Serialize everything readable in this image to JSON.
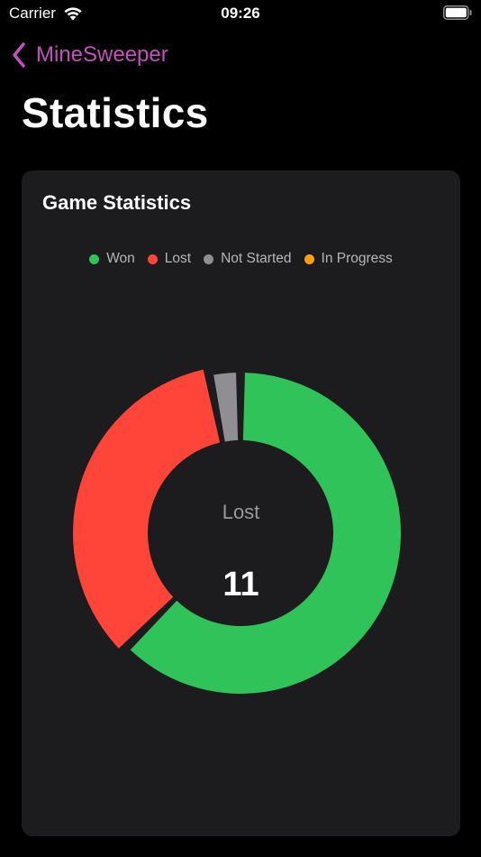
{
  "status_bar": {
    "carrier": "Carrier",
    "time": "09:26"
  },
  "nav": {
    "back_label": "MineSweeper"
  },
  "page": {
    "title": "Statistics"
  },
  "card": {
    "title": "Game Statistics",
    "legend": [
      {
        "label": "Won",
        "color": "#30c35a"
      },
      {
        "label": "Lost",
        "color": "#ff453a"
      },
      {
        "label": "Not Started",
        "color": "#8e8e93"
      },
      {
        "label": "In Progress",
        "color": "#ff9f0a"
      }
    ],
    "center": {
      "label": "Lost",
      "value": "11"
    }
  },
  "chart_data": {
    "type": "pie",
    "style": "donut",
    "categories": [
      "Won",
      "Lost",
      "Not Started",
      "In Progress"
    ],
    "values": [
      20,
      11,
      1,
      0
    ],
    "colors": [
      "#30c35a",
      "#ff453a",
      "#8e8e93",
      "#ff9f0a"
    ],
    "highlighted": "Lost",
    "legend_position": "top"
  }
}
